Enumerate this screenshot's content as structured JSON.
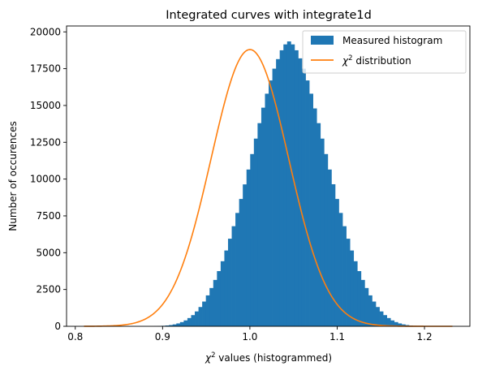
{
  "chart_data": {
    "type": "bar",
    "title": "Integrated curves with integrate1d",
    "xlabel": "χ² values (histogrammed)",
    "xlabel_parts": [
      "χ",
      "2",
      " values (histogrammed)"
    ],
    "ylabel": "Number of occurences",
    "xlim": [
      0.79,
      1.252
    ],
    "ylim": [
      0,
      20400
    ],
    "xticks": [
      0.8,
      0.9,
      1.0,
      1.1,
      1.2
    ],
    "xtick_labels": [
      "0.8",
      "0.9",
      "1.0",
      "1.1",
      "1.2"
    ],
    "yticks": [
      0,
      2500,
      5000,
      7500,
      10000,
      12500,
      15000,
      17500,
      20000
    ],
    "ytick_labels": [
      "0",
      "2500",
      "5000",
      "7500",
      "10000",
      "12500",
      "15000",
      "17500",
      "20000"
    ],
    "grid": false,
    "legend_position": "top-right",
    "series": [
      {
        "name": "Measured histogram",
        "kind": "histogram",
        "color": "#1f77b4",
        "bin_start": 0.81,
        "bin_width": 0.00423,
        "counts": [
          0,
          0,
          0,
          0,
          0,
          0,
          0,
          0,
          0,
          0,
          0,
          0,
          0,
          0,
          0,
          0,
          0,
          0,
          0,
          10,
          20,
          35,
          55,
          85,
          130,
          195,
          285,
          400,
          560,
          760,
          1010,
          1310,
          1680,
          2100,
          2600,
          3150,
          3750,
          4420,
          5150,
          5950,
          6800,
          7700,
          8650,
          9640,
          10650,
          11700,
          12750,
          13800,
          14850,
          15800,
          16700,
          17500,
          18150,
          18750,
          19150,
          19350,
          19150,
          18750,
          18200,
          17500,
          16700,
          15800,
          14800,
          13800,
          12750,
          11700,
          10650,
          9650,
          8650,
          7700,
          6800,
          5950,
          5150,
          4420,
          3750,
          3150,
          2600,
          2100,
          1680,
          1310,
          1010,
          760,
          560,
          400,
          285,
          195,
          130,
          85,
          55,
          35,
          20,
          10,
          0,
          0,
          0,
          0,
          0,
          0,
          0,
          0,
          0,
          0
        ]
      },
      {
        "name": "χ² distribution",
        "name_parts": [
          "χ",
          "2",
          " distribution"
        ],
        "kind": "curve",
        "color": "#ff7f0e",
        "mean": 1.0,
        "std": 0.0444,
        "peak": 18800,
        "x_range": [
          0.81,
          1.232
        ]
      }
    ]
  }
}
